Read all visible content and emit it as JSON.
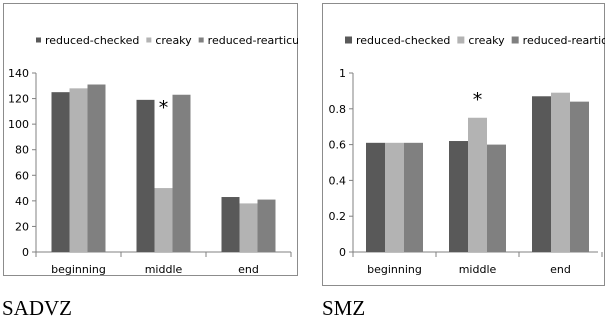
{
  "captions": [
    "SADVZ",
    "SMZ"
  ],
  "colors": {
    "series": [
      "#595959",
      "#b3b3b3",
      "#808080"
    ],
    "axis": "#808080",
    "frame": "#8c8c8c"
  },
  "chart_data": [
    {
      "type": "bar",
      "categories": [
        "beginning",
        "middle",
        "end"
      ],
      "series": [
        {
          "name": "reduced-checked",
          "values": [
            125,
            119,
            43
          ]
        },
        {
          "name": "creaky",
          "values": [
            128,
            50,
            38
          ]
        },
        {
          "name": "reduced-rearticulated",
          "values": [
            131,
            123,
            41
          ]
        }
      ],
      "ylim": [
        0,
        140
      ],
      "yticks": [
        "0",
        "20",
        "40",
        "60",
        "80",
        "100",
        "120",
        "140"
      ],
      "grid": false,
      "legend": "top",
      "annotations": [
        {
          "text": "*",
          "category": "middle"
        }
      ]
    },
    {
      "type": "bar",
      "categories": [
        "beginning",
        "middle",
        "end"
      ],
      "series": [
        {
          "name": "reduced-checked",
          "values": [
            0.61,
            0.62,
            0.87
          ]
        },
        {
          "name": "creaky",
          "values": [
            0.61,
            0.75,
            0.89
          ]
        },
        {
          "name": "reduced-rearticulated",
          "values": [
            0.61,
            0.6,
            0.84
          ]
        }
      ],
      "ylim": [
        0,
        1
      ],
      "yticks": [
        "0",
        "0.2",
        "0.4",
        "0.6",
        "0.8",
        "1"
      ],
      "grid": false,
      "legend": "top",
      "annotations": [
        {
          "text": "*",
          "category": "middle"
        }
      ]
    }
  ]
}
